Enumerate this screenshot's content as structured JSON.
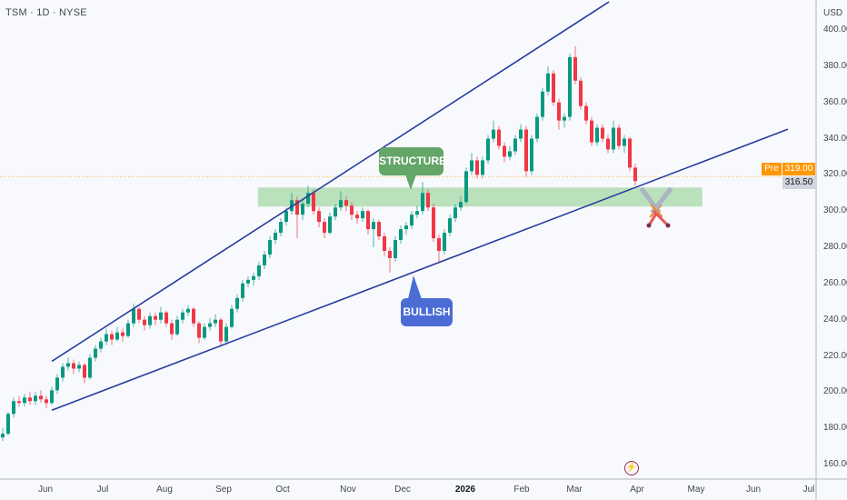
{
  "header": {
    "title": "TSM · 1D · NYSE"
  },
  "price_axis": {
    "currency": "USD",
    "ticks": [
      "400.00",
      "380.00",
      "360.00",
      "340.00",
      "320.00",
      "300.00",
      "280.00",
      "260.00",
      "240.00",
      "220.00",
      "200.00",
      "180.00",
      "160.00"
    ]
  },
  "badges": {
    "pre_label": "Pre",
    "pre_price": "319.00",
    "last_price": "316.50"
  },
  "annotations": {
    "structure": "STRUCTURE",
    "bullish": "BULLISH"
  },
  "icons": {
    "swords": "crossed-swords-icon",
    "bolt": "lightning-icon"
  },
  "colors": {
    "up": "#089981",
    "down": "#f23645",
    "trendline": "#2a3d9e",
    "zone": "#b3ddb5",
    "pre": "#ff9800",
    "structure": "#64a568",
    "bullish": "#4a6cd4"
  },
  "chart_data": {
    "type": "candlestick",
    "title": "TSM · 1D · NYSE",
    "x_ticks": [
      "Jun",
      "Jul",
      "Aug",
      "Sep",
      "Oct",
      "Nov",
      "Dec",
      "2026",
      "Feb",
      "Mar",
      "Apr",
      "May",
      "Jun",
      "Jul"
    ],
    "y_range": [
      160,
      400
    ],
    "pre_market_price": 319.0,
    "last_price": 316.5,
    "candles_ohlc": [
      [
        175,
        180,
        173,
        177
      ],
      [
        177,
        189,
        176,
        188
      ],
      [
        188,
        197,
        186,
        195
      ],
      [
        195,
        198,
        192,
        194
      ],
      [
        194,
        199,
        192,
        197
      ],
      [
        197,
        200,
        193,
        195
      ],
      [
        195,
        200,
        193,
        198
      ],
      [
        198,
        201,
        194,
        196
      ],
      [
        196,
        198,
        191,
        194
      ],
      [
        194,
        203,
        193,
        201
      ],
      [
        201,
        210,
        199,
        208
      ],
      [
        208,
        216,
        206,
        214
      ],
      [
        214,
        219,
        212,
        216
      ],
      [
        216,
        218,
        210,
        213
      ],
      [
        213,
        217,
        211,
        215
      ],
      [
        215,
        216,
        205,
        208
      ],
      [
        208,
        221,
        207,
        219
      ],
      [
        219,
        226,
        217,
        224
      ],
      [
        224,
        230,
        222,
        228
      ],
      [
        228,
        235,
        226,
        232
      ],
      [
        232,
        234,
        226,
        229
      ],
      [
        229,
        236,
        228,
        233
      ],
      [
        233,
        235,
        228,
        231
      ],
      [
        231,
        240,
        230,
        238
      ],
      [
        238,
        249,
        236,
        246
      ],
      [
        246,
        247,
        238,
        240
      ],
      [
        240,
        242,
        234,
        237
      ],
      [
        237,
        244,
        235,
        242
      ],
      [
        242,
        244,
        237,
        240
      ],
      [
        240,
        247,
        238,
        244
      ],
      [
        244,
        245,
        236,
        238
      ],
      [
        238,
        240,
        229,
        232
      ],
      [
        232,
        242,
        231,
        240
      ],
      [
        240,
        246,
        238,
        244
      ],
      [
        244,
        248,
        242,
        246
      ],
      [
        246,
        247,
        236,
        238
      ],
      [
        238,
        239,
        227,
        230
      ],
      [
        230,
        238,
        229,
        236
      ],
      [
        236,
        241,
        234,
        238
      ],
      [
        238,
        243,
        236,
        240
      ],
      [
        240,
        241,
        225,
        228
      ],
      [
        228,
        238,
        226,
        236
      ],
      [
        236,
        248,
        235,
        246
      ],
      [
        246,
        254,
        244,
        252
      ],
      [
        252,
        262,
        250,
        260
      ],
      [
        260,
        264,
        258,
        262
      ],
      [
        262,
        266,
        259,
        264
      ],
      [
        264,
        272,
        262,
        270
      ],
      [
        270,
        278,
        268,
        276
      ],
      [
        276,
        286,
        274,
        284
      ],
      [
        284,
        290,
        282,
        288
      ],
      [
        288,
        296,
        286,
        294
      ],
      [
        294,
        302,
        292,
        300
      ],
      [
        300,
        310,
        298,
        306
      ],
      [
        306,
        308,
        285,
        298
      ],
      [
        298,
        306,
        295,
        304
      ],
      [
        304,
        314,
        302,
        310
      ],
      [
        310,
        312,
        298,
        300
      ],
      [
        300,
        302,
        291,
        294
      ],
      [
        294,
        296,
        285,
        288
      ],
      [
        288,
        299,
        287,
        297
      ],
      [
        297,
        304,
        295,
        302
      ],
      [
        302,
        311,
        300,
        306
      ],
      [
        306,
        308,
        300,
        303
      ],
      [
        303,
        305,
        295,
        298
      ],
      [
        298,
        300,
        293,
        296
      ],
      [
        296,
        302,
        294,
        300
      ],
      [
        300,
        301,
        287,
        290
      ],
      [
        290,
        296,
        280,
        294
      ],
      [
        294,
        295,
        284,
        286
      ],
      [
        286,
        288,
        275,
        278
      ],
      [
        278,
        280,
        266,
        274
      ],
      [
        274,
        286,
        272,
        284
      ],
      [
        284,
        292,
        282,
        290
      ],
      [
        290,
        294,
        287,
        292
      ],
      [
        292,
        300,
        290,
        298
      ],
      [
        298,
        303,
        296,
        300
      ],
      [
        300,
        316,
        298,
        310
      ],
      [
        310,
        312,
        300,
        302
      ],
      [
        302,
        304,
        283,
        285
      ],
      [
        285,
        287,
        272,
        278
      ],
      [
        278,
        290,
        276,
        288
      ],
      [
        288,
        298,
        286,
        296
      ],
      [
        296,
        304,
        294,
        302
      ],
      [
        302,
        308,
        300,
        305
      ],
      [
        305,
        324,
        304,
        322
      ],
      [
        322,
        332,
        320,
        328
      ],
      [
        328,
        330,
        318,
        320
      ],
      [
        320,
        330,
        318,
        328
      ],
      [
        328,
        342,
        326,
        340
      ],
      [
        340,
        350,
        338,
        345
      ],
      [
        345,
        347,
        334,
        336
      ],
      [
        336,
        338,
        327,
        330
      ],
      [
        330,
        336,
        328,
        333
      ],
      [
        333,
        342,
        331,
        340
      ],
      [
        340,
        348,
        338,
        345
      ],
      [
        345,
        347,
        319,
        322
      ],
      [
        322,
        342,
        320,
        340
      ],
      [
        340,
        354,
        338,
        352
      ],
      [
        352,
        368,
        350,
        366
      ],
      [
        366,
        380,
        364,
        376
      ],
      [
        376,
        378,
        358,
        360
      ],
      [
        360,
        362,
        345,
        350
      ],
      [
        350,
        354,
        346,
        352
      ],
      [
        352,
        387,
        350,
        385
      ],
      [
        385,
        391,
        370,
        372
      ],
      [
        372,
        374,
        356,
        358
      ],
      [
        358,
        360,
        348,
        350
      ],
      [
        350,
        352,
        336,
        338
      ],
      [
        338,
        348,
        336,
        346
      ],
      [
        346,
        348,
        338,
        340
      ],
      [
        340,
        342,
        332,
        334
      ],
      [
        334,
        350,
        332,
        346
      ],
      [
        346,
        348,
        334,
        336
      ],
      [
        336,
        342,
        332,
        340
      ],
      [
        340,
        341,
        322,
        324
      ],
      [
        324,
        326,
        314,
        316.5
      ]
    ],
    "drawings": {
      "upper_trendline": {
        "from": {
          "bar": 9,
          "price": 217
        },
        "to": {
          "bar": 111.2,
          "price": 415.6
        }
      },
      "lower_trendline": {
        "from": {
          "bar": 9,
          "price": 190
        },
        "to": {
          "bar": 144,
          "price": 345.2
        }
      },
      "support_zone": {
        "from_bar": 46.8,
        "to_bar": 128.3,
        "price_low": 302.5,
        "price_high": 313
      }
    }
  }
}
